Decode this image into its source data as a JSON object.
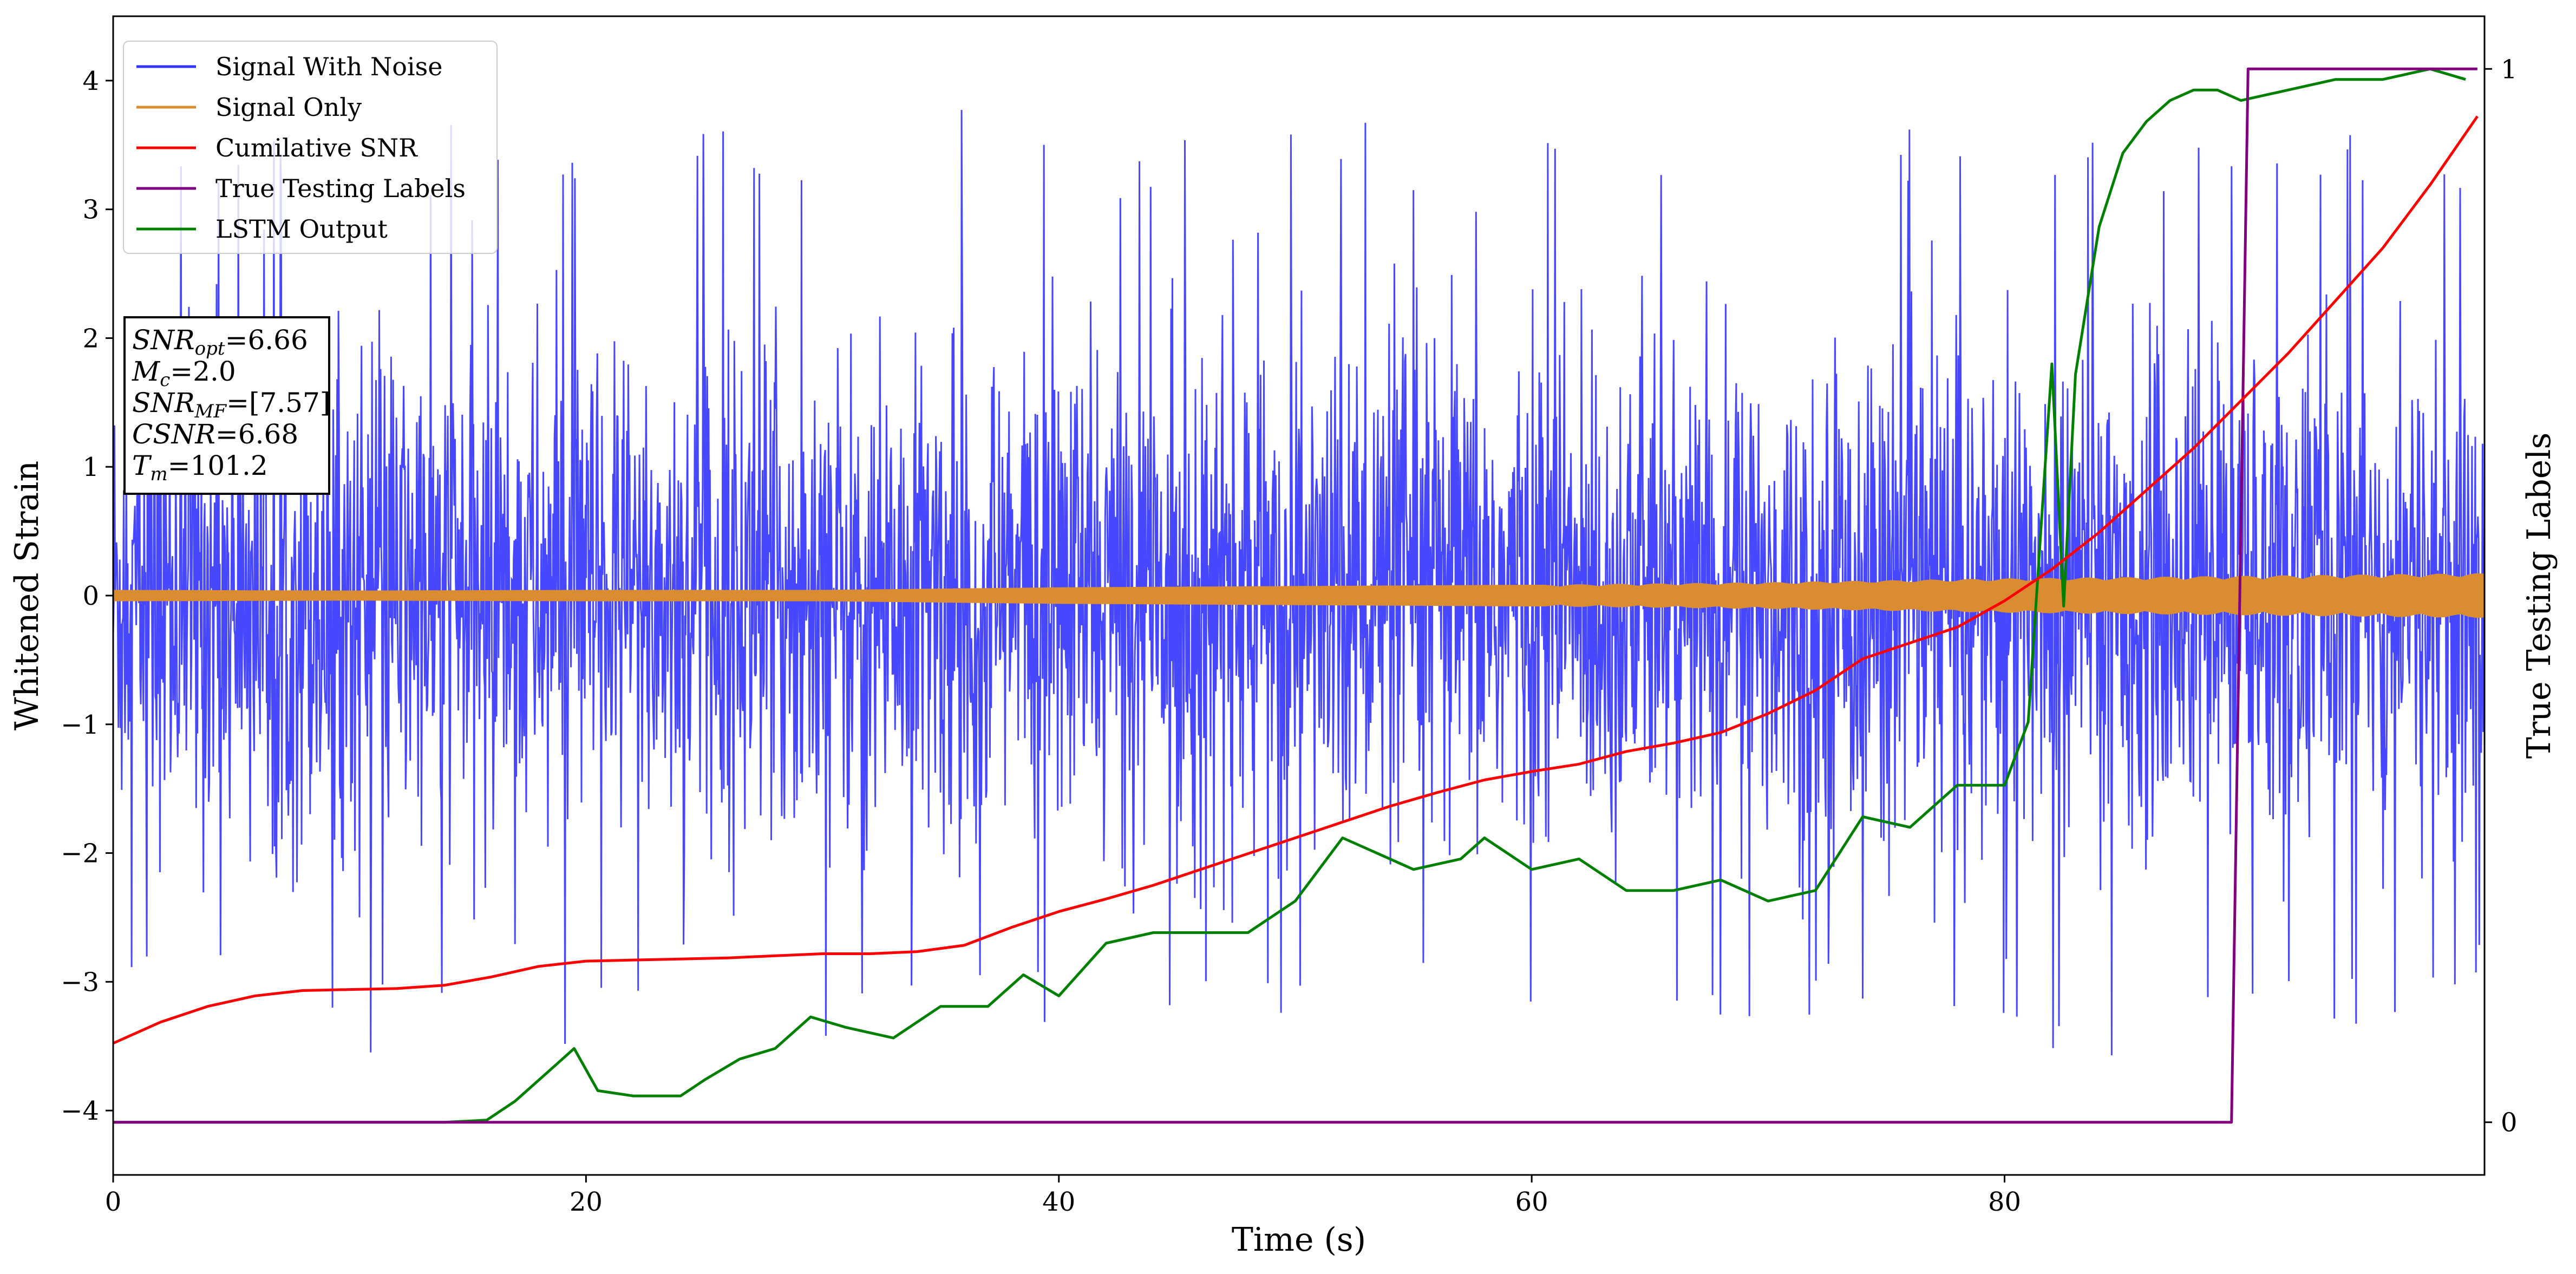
{
  "chart_data": {
    "type": "line",
    "xlabel": "Time (s)",
    "ylabel": "Whitened Strain",
    "y2label": "True Testing Labels",
    "xlim": [
      0,
      100.3
    ],
    "ylim": [
      -4.5,
      4.5
    ],
    "y2lim": [
      -0.05,
      1.05
    ],
    "x_ticks": [
      0,
      20,
      40,
      60,
      80
    ],
    "y_ticks": [
      -4,
      -3,
      -2,
      -1,
      0,
      1,
      2,
      3,
      4
    ],
    "y2_ticks": [
      0,
      1
    ],
    "grid": false,
    "legend_placement": "top-left",
    "colors": {
      "signal_with_noise": "#3333ff",
      "signal_only": "#d98c30",
      "cumulative_snr": "#ff0000",
      "true_testing_labels": "#800080",
      "lstm_output": "#008000"
    },
    "series": [
      {
        "name": "Signal With Noise",
        "axis": "left",
        "description_of_style": "dense noise",
        "x": [
          0,
          5,
          10,
          15,
          20,
          25,
          30,
          35,
          40,
          45,
          50,
          55,
          60,
          65,
          70,
          75,
          80,
          85,
          90,
          95,
          100
        ],
        "y_upper_envelope": [
          3.0,
          3.6,
          3.9,
          3.7,
          3.6,
          3.6,
          3.7,
          3.8,
          3.9,
          3.9,
          3.8,
          3.7,
          3.8,
          3.8,
          3.6,
          3.8,
          3.7,
          3.7,
          3.8,
          3.8,
          3.6
        ],
        "y_lower_envelope": [
          -3.0,
          -3.3,
          -3.6,
          -3.4,
          -3.5,
          -3.4,
          -3.6,
          -3.4,
          -3.3,
          -3.5,
          -3.4,
          -3.4,
          -3.6,
          -3.4,
          -3.4,
          -3.4,
          -3.5,
          -3.6,
          -3.5,
          -3.5,
          -3.0
        ]
      },
      {
        "name": "Signal Only",
        "axis": "left",
        "x": [
          0,
          10,
          20,
          30,
          40,
          50,
          60,
          70,
          80,
          90,
          100
        ],
        "y_amplitude": [
          0.04,
          0.035,
          0.04,
          0.04,
          0.06,
          0.07,
          0.08,
          0.1,
          0.13,
          0.15,
          0.17
        ]
      },
      {
        "name": "Cumilative SNR",
        "axis": "right",
        "x": [
          0,
          2,
          4,
          6,
          8,
          10,
          12,
          14,
          16,
          18,
          20,
          22,
          24,
          26,
          28,
          30,
          32,
          34,
          36,
          38,
          40,
          42,
          44,
          46,
          48,
          50,
          52,
          54,
          56,
          58,
          60,
          62,
          64,
          66,
          68,
          70,
          72,
          74,
          76,
          78,
          80,
          82,
          84,
          86,
          88,
          90,
          92,
          94,
          96,
          98,
          100
        ],
        "y": [
          0.075,
          0.095,
          0.11,
          0.12,
          0.125,
          0.126,
          0.127,
          0.13,
          0.138,
          0.148,
          0.153,
          0.154,
          0.155,
          0.156,
          0.158,
          0.16,
          0.16,
          0.162,
          0.168,
          0.185,
          0.2,
          0.212,
          0.225,
          0.24,
          0.255,
          0.27,
          0.285,
          0.3,
          0.313,
          0.325,
          0.333,
          0.34,
          0.352,
          0.36,
          0.37,
          0.388,
          0.41,
          0.44,
          0.455,
          0.47,
          0.495,
          0.525,
          0.56,
          0.6,
          0.64,
          0.685,
          0.73,
          0.78,
          0.83,
          0.89,
          0.955
        ]
      },
      {
        "name": "True Testing Labels",
        "axis": "right",
        "x": [
          0,
          89.6,
          90.3,
          100
        ],
        "y": [
          0,
          0,
          1,
          1
        ]
      },
      {
        "name": "LSTM Output",
        "axis": "right",
        "x": [
          0,
          10,
          14,
          15.8,
          17,
          18.5,
          19.5,
          20.5,
          22,
          24,
          25,
          26.5,
          28,
          29.5,
          31,
          33,
          35,
          37,
          38.5,
          40,
          42,
          44,
          46,
          48,
          50,
          52,
          53,
          55,
          57,
          58,
          60,
          62,
          64,
          66,
          68,
          70,
          72,
          74,
          76,
          78,
          80,
          81,
          82,
          82.5,
          83,
          84,
          85,
          86,
          87,
          88,
          89,
          90,
          92,
          94,
          96,
          98,
          99.5
        ],
        "y": [
          0,
          0,
          0,
          0.002,
          0.02,
          0.05,
          0.07,
          0.03,
          0.025,
          0.025,
          0.04,
          0.06,
          0.07,
          0.1,
          0.09,
          0.08,
          0.11,
          0.11,
          0.14,
          0.12,
          0.17,
          0.18,
          0.18,
          0.18,
          0.21,
          0.27,
          0.26,
          0.24,
          0.25,
          0.27,
          0.24,
          0.25,
          0.22,
          0.22,
          0.23,
          0.21,
          0.22,
          0.29,
          0.28,
          0.32,
          0.32,
          0.38,
          0.72,
          0.49,
          0.71,
          0.85,
          0.92,
          0.95,
          0.97,
          0.98,
          0.98,
          0.97,
          0.98,
          0.99,
          0.99,
          1.0,
          0.99
        ]
      }
    ],
    "legend": [
      "Signal With Noise",
      "Signal Only",
      "Cumilative SNR",
      "True Testing Labels",
      "LSTM Output"
    ],
    "annotation_box": {
      "lines": [
        {
          "sym": "SNR",
          "sub": "opt",
          "val": "=6.66"
        },
        {
          "sym": "M",
          "sub": "c",
          "val": "=2.0"
        },
        {
          "sym": "SNR",
          "sub": "MF",
          "val": "=[7.57]"
        },
        {
          "sym": "CSNR",
          "sub": "",
          "val": "=6.68"
        },
        {
          "sym": "T",
          "sub": "m",
          "val": "=101.2"
        }
      ]
    }
  }
}
